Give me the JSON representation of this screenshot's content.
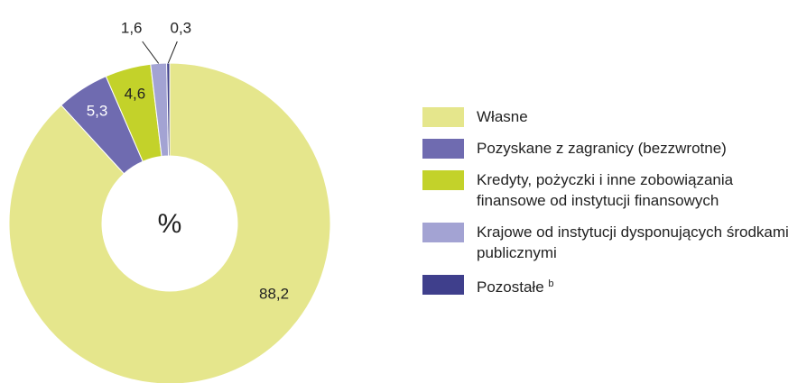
{
  "chart_data": {
    "type": "donut",
    "center_label": "%",
    "categories": [
      "Własne",
      "Pozyskane z zagranicy (bezzwrotne)",
      "Kredyty, pożyczki i inne zobowiązania finansowe od instytucji finansowych",
      "Krajowe od instytucji dysponujących środkami publicznymi",
      "Pozostałe"
    ],
    "footnotes": {
      "4": "b"
    },
    "values": [
      88.2,
      5.3,
      4.6,
      1.6,
      0.3
    ],
    "value_labels": [
      "88,2",
      "5,3",
      "4,6",
      "1,6",
      "0,3"
    ],
    "colors": [
      "#e5e68c",
      "#6f6bb0",
      "#c3d22a",
      "#a3a3d3",
      "#3f3f8c"
    ],
    "label_colors": [
      "#222222",
      "#ffffff",
      "#222222",
      "#222222",
      "#222222"
    ]
  }
}
